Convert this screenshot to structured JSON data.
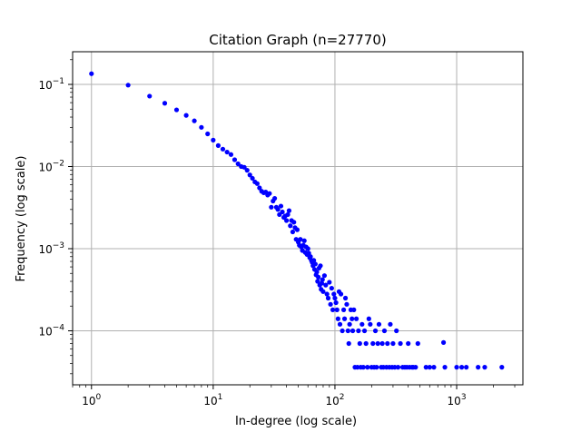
{
  "chart_data": {
    "type": "scatter",
    "title": "Citation Graph (n=27770)",
    "xlabel": "In-degree (log scale)",
    "ylabel": "Frequency (log scale)",
    "xscale": "log",
    "yscale": "log",
    "xlim": [
      0.7,
      3500
    ],
    "ylim": [
      2.2e-05,
      0.25
    ],
    "grid": true,
    "marker_color": "#0000ff",
    "x_ticks": [
      {
        "base": "10",
        "exp": "0",
        "value": 1
      },
      {
        "base": "10",
        "exp": "1",
        "value": 10
      },
      {
        "base": "10",
        "exp": "2",
        "value": 100
      },
      {
        "base": "10",
        "exp": "3",
        "value": 1000
      }
    ],
    "y_ticks": [
      {
        "base": "10",
        "exp": "−4",
        "value": 0.0001
      },
      {
        "base": "10",
        "exp": "−3",
        "value": 0.001
      },
      {
        "base": "10",
        "exp": "−2",
        "value": 0.01
      },
      {
        "base": "10",
        "exp": "−1",
        "value": 0.1
      }
    ],
    "points": [
      [
        1,
        0.135
      ],
      [
        2,
        0.098
      ],
      [
        3,
        0.072
      ],
      [
        4,
        0.059
      ],
      [
        5,
        0.049
      ],
      [
        6,
        0.042
      ],
      [
        7,
        0.036
      ],
      [
        8,
        0.03
      ],
      [
        9,
        0.025
      ],
      [
        10,
        0.021
      ],
      [
        11,
        0.018
      ],
      [
        12,
        0.0163
      ],
      [
        13,
        0.015
      ],
      [
        14,
        0.014
      ],
      [
        15,
        0.0121
      ],
      [
        16,
        0.0108
      ],
      [
        17,
        0.01
      ],
      [
        18,
        0.0098
      ],
      [
        19,
        0.009
      ],
      [
        20,
        0.0079
      ],
      [
        21,
        0.0072
      ],
      [
        22,
        0.0065
      ],
      [
        23,
        0.0062
      ],
      [
        24,
        0.0055
      ],
      [
        25,
        0.005
      ],
      [
        26,
        0.0048
      ],
      [
        27,
        0.0049
      ],
      [
        28,
        0.0045
      ],
      [
        29,
        0.0047
      ],
      [
        30,
        0.0032
      ],
      [
        31,
        0.0038
      ],
      [
        32,
        0.0041
      ],
      [
        33,
        0.0032
      ],
      [
        34,
        0.003
      ],
      [
        35,
        0.0026
      ],
      [
        36,
        0.0033
      ],
      [
        37,
        0.0028
      ],
      [
        38,
        0.0024
      ],
      [
        39,
        0.0025
      ],
      [
        40,
        0.0022
      ],
      [
        41,
        0.0026
      ],
      [
        42,
        0.0029
      ],
      [
        43,
        0.0019
      ],
      [
        44,
        0.0022
      ],
      [
        45,
        0.0016
      ],
      [
        46,
        0.0021
      ],
      [
        47,
        0.0018
      ],
      [
        48,
        0.0013
      ],
      [
        49,
        0.0017
      ],
      [
        50,
        0.0012
      ],
      [
        51,
        0.0011
      ],
      [
        52,
        0.0013
      ],
      [
        53,
        0.00105
      ],
      [
        54,
        0.00095
      ],
      [
        55,
        0.0011
      ],
      [
        56,
        0.00125
      ],
      [
        57,
        0.0009
      ],
      [
        58,
        0.00105
      ],
      [
        59,
        0.00085
      ],
      [
        60,
        0.001
      ],
      [
        61,
        0.00088
      ],
      [
        62,
        0.00078
      ],
      [
        63,
        0.0008
      ],
      [
        64,
        0.00072
      ],
      [
        65,
        0.00068
      ],
      [
        66,
        0.00062
      ],
      [
        67,
        0.00072
      ],
      [
        68,
        0.00056
      ],
      [
        69,
        0.00065
      ],
      [
        70,
        0.00048
      ],
      [
        71,
        0.00052
      ],
      [
        72,
        0.0004
      ],
      [
        73,
        0.00045
      ],
      [
        74,
        0.00058
      ],
      [
        75,
        0.00036
      ],
      [
        76,
        0.00062
      ],
      [
        77,
        0.00032
      ],
      [
        78,
        0.00038
      ],
      [
        79,
        0.00042
      ],
      [
        80,
        0.0003
      ],
      [
        82,
        0.00047
      ],
      [
        84,
        0.00036
      ],
      [
        86,
        0.00028
      ],
      [
        88,
        0.00025
      ],
      [
        90,
        0.00039
      ],
      [
        92,
        0.00021
      ],
      [
        94,
        0.00033
      ],
      [
        96,
        0.00018
      ],
      [
        98,
        0.00028
      ],
      [
        100,
        0.00025
      ],
      [
        102,
        0.00022
      ],
      [
        104,
        0.00018
      ],
      [
        106,
        0.00014
      ],
      [
        108,
        0.0003
      ],
      [
        110,
        0.00012
      ],
      [
        112,
        0.00028
      ],
      [
        115,
        0.0001
      ],
      [
        118,
        0.00018
      ],
      [
        120,
        0.00014
      ],
      [
        122,
        0.00025
      ],
      [
        125,
        0.00021
      ],
      [
        128,
        0.0001
      ],
      [
        130,
        7e-05
      ],
      [
        132,
        0.00012
      ],
      [
        135,
        0.00018
      ],
      [
        138,
        0.00014
      ],
      [
        140,
        0.0001
      ],
      [
        143,
        0.00018
      ],
      [
        146,
        3.6e-05
      ],
      [
        150,
        0.00014
      ],
      [
        153,
        3.6e-05
      ],
      [
        156,
        0.0001
      ],
      [
        160,
        7e-05
      ],
      [
        163,
        3.6e-05
      ],
      [
        167,
        0.00012
      ],
      [
        171,
        3.6e-05
      ],
      [
        175,
        0.0001
      ],
      [
        180,
        7e-05
      ],
      [
        185,
        3.6e-05
      ],
      [
        190,
        0.00014
      ],
      [
        195,
        0.00012
      ],
      [
        200,
        3.6e-05
      ],
      [
        205,
        7e-05
      ],
      [
        210,
        3.6e-05
      ],
      [
        215,
        0.0001
      ],
      [
        220,
        3.6e-05
      ],
      [
        225,
        7e-05
      ],
      [
        230,
        0.00012
      ],
      [
        240,
        3.6e-05
      ],
      [
        245,
        7e-05
      ],
      [
        250,
        3.6e-05
      ],
      [
        255,
        0.0001
      ],
      [
        265,
        3.6e-05
      ],
      [
        270,
        7e-05
      ],
      [
        280,
        3.6e-05
      ],
      [
        285,
        0.00012
      ],
      [
        295,
        3.6e-05
      ],
      [
        300,
        7e-05
      ],
      [
        310,
        3.6e-05
      ],
      [
        320,
        0.0001
      ],
      [
        330,
        3.6e-05
      ],
      [
        345,
        7e-05
      ],
      [
        360,
        3.6e-05
      ],
      [
        375,
        3.6e-05
      ],
      [
        390,
        3.6e-05
      ],
      [
        400,
        7e-05
      ],
      [
        410,
        3.6e-05
      ],
      [
        430,
        3.6e-05
      ],
      [
        440,
        3.6e-05
      ],
      [
        460,
        3.6e-05
      ],
      [
        480,
        7e-05
      ],
      [
        560,
        3.6e-05
      ],
      [
        600,
        3.6e-05
      ],
      [
        650,
        3.6e-05
      ],
      [
        780,
        7.2e-05
      ],
      [
        800,
        3.6e-05
      ],
      [
        1000,
        3.6e-05
      ],
      [
        1100,
        3.6e-05
      ],
      [
        1200,
        3.6e-05
      ],
      [
        1500,
        3.6e-05
      ],
      [
        1700,
        3.6e-05
      ],
      [
        2350,
        3.6e-05
      ]
    ]
  }
}
